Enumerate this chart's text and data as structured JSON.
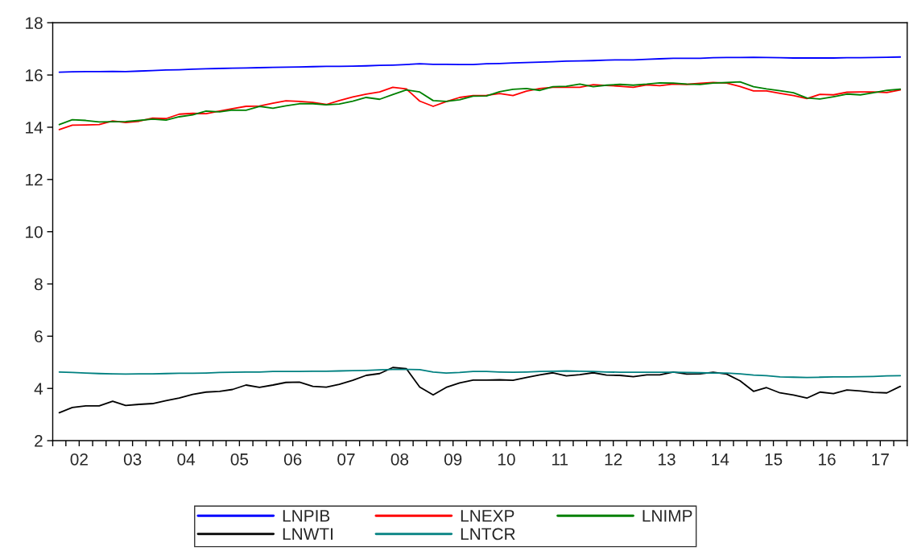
{
  "chart_data": {
    "type": "line",
    "x": [
      "2002-02-15",
      "2002-05-15",
      "2002-08-15",
      "2002-11-15",
      "2003-02-15",
      "2003-05-15",
      "2003-08-15",
      "2003-11-15",
      "2004-02-15",
      "2004-05-15",
      "2004-08-15",
      "2004-11-15",
      "2005-02-15",
      "2005-05-15",
      "2005-08-15",
      "2005-11-15",
      "2006-02-15",
      "2006-05-15",
      "2006-08-15",
      "2006-11-15",
      "2007-02-15",
      "2007-05-15",
      "2007-08-15",
      "2007-11-15",
      "2008-02-15",
      "2008-05-15",
      "2008-08-15",
      "2008-11-15",
      "2009-02-15",
      "2009-05-15",
      "2009-08-15",
      "2009-11-15",
      "2010-02-15",
      "2010-05-15",
      "2010-08-15",
      "2010-11-15",
      "2011-02-15",
      "2011-05-15",
      "2011-08-15",
      "2011-11-15",
      "2012-02-15",
      "2012-05-15",
      "2012-08-15",
      "2012-11-15",
      "2013-02-15",
      "2013-05-15",
      "2013-08-15",
      "2013-11-15",
      "2014-02-15",
      "2014-05-15",
      "2014-08-15",
      "2014-11-15",
      "2015-02-15",
      "2015-05-15",
      "2015-08-15",
      "2015-11-15",
      "2016-02-15",
      "2016-05-15",
      "2016-08-15",
      "2016-11-15",
      "2017-02-15",
      "2017-05-15",
      "2017-08-15",
      "2017-11-15"
    ],
    "series": [
      {
        "name": "LNPIB",
        "color": "#0000ff",
        "values": [
          16.11,
          16.12,
          16.13,
          16.13,
          16.14,
          16.13,
          16.15,
          16.17,
          16.19,
          16.2,
          16.22,
          16.24,
          16.25,
          16.26,
          16.27,
          16.28,
          16.29,
          16.3,
          16.31,
          16.32,
          16.33,
          16.33,
          16.34,
          16.35,
          16.37,
          16.38,
          16.4,
          16.43,
          16.41,
          16.41,
          16.4,
          16.4,
          16.43,
          16.44,
          16.46,
          16.48,
          16.49,
          16.51,
          16.53,
          16.54,
          16.55,
          16.57,
          16.58,
          16.58,
          16.6,
          16.62,
          16.64,
          16.64,
          16.64,
          16.66,
          16.67,
          16.67,
          16.68,
          16.67,
          16.66,
          16.65,
          16.65,
          16.65,
          16.65,
          16.66,
          16.66,
          16.67,
          16.68,
          16.69
        ]
      },
      {
        "name": "LNEXP",
        "color": "#ff0000",
        "values": [
          13.91,
          14.08,
          14.09,
          14.1,
          14.24,
          14.18,
          14.23,
          14.35,
          14.33,
          14.5,
          14.53,
          14.52,
          14.62,
          14.71,
          14.8,
          14.81,
          14.92,
          15.01,
          14.99,
          14.95,
          14.87,
          15.02,
          15.16,
          15.27,
          15.35,
          15.53,
          15.47,
          15.0,
          14.8,
          14.98,
          15.14,
          15.21,
          15.22,
          15.29,
          15.21,
          15.38,
          15.48,
          15.53,
          15.53,
          15.53,
          15.63,
          15.6,
          15.57,
          15.53,
          15.62,
          15.59,
          15.65,
          15.64,
          15.68,
          15.71,
          15.69,
          15.56,
          15.39,
          15.39,
          15.3,
          15.21,
          15.1,
          15.26,
          15.24,
          15.34,
          15.35,
          15.35,
          15.33,
          15.43
        ]
      },
      {
        "name": "LNIMP",
        "color": "#008000",
        "values": [
          14.1,
          14.29,
          14.26,
          14.2,
          14.21,
          14.22,
          14.26,
          14.31,
          14.27,
          14.4,
          14.47,
          14.62,
          14.59,
          14.66,
          14.65,
          14.8,
          14.73,
          14.82,
          14.9,
          14.9,
          14.86,
          14.89,
          15.0,
          15.14,
          15.07,
          15.25,
          15.43,
          15.35,
          15.02,
          14.99,
          15.05,
          15.19,
          15.2,
          15.36,
          15.45,
          15.48,
          15.41,
          15.55,
          15.57,
          15.65,
          15.55,
          15.61,
          15.64,
          15.61,
          15.65,
          15.7,
          15.69,
          15.65,
          15.64,
          15.69,
          15.71,
          15.74,
          15.55,
          15.47,
          15.4,
          15.32,
          15.12,
          15.08,
          15.17,
          15.27,
          15.24,
          15.32,
          15.41,
          15.46
        ]
      },
      {
        "name": "LNWTI",
        "color": "#000000",
        "values": [
          3.07,
          3.27,
          3.33,
          3.33,
          3.51,
          3.35,
          3.39,
          3.42,
          3.53,
          3.63,
          3.77,
          3.86,
          3.89,
          3.96,
          4.13,
          4.04,
          4.13,
          4.23,
          4.24,
          4.08,
          4.05,
          4.16,
          4.31,
          4.5,
          4.57,
          4.8,
          4.76,
          4.05,
          3.75,
          4.04,
          4.21,
          4.32,
          4.32,
          4.33,
          4.31,
          4.42,
          4.52,
          4.6,
          4.48,
          4.53,
          4.6,
          4.51,
          4.5,
          4.45,
          4.52,
          4.52,
          4.63,
          4.55,
          4.56,
          4.62,
          4.55,
          4.29,
          3.89,
          4.03,
          3.83,
          3.75,
          3.63,
          3.86,
          3.8,
          3.94,
          3.9,
          3.85,
          3.83,
          4.08
        ]
      },
      {
        "name": "LNTCR",
        "color": "#008080",
        "values": [
          4.63,
          4.61,
          4.59,
          4.57,
          4.56,
          4.55,
          4.56,
          4.56,
          4.57,
          4.58,
          4.58,
          4.59,
          4.61,
          4.62,
          4.63,
          4.63,
          4.65,
          4.65,
          4.65,
          4.66,
          4.66,
          4.67,
          4.68,
          4.69,
          4.71,
          4.73,
          4.73,
          4.72,
          4.63,
          4.59,
          4.61,
          4.65,
          4.65,
          4.63,
          4.62,
          4.63,
          4.65,
          4.66,
          4.67,
          4.66,
          4.65,
          4.63,
          4.62,
          4.62,
          4.62,
          4.62,
          4.62,
          4.61,
          4.6,
          4.59,
          4.59,
          4.56,
          4.51,
          4.49,
          4.44,
          4.43,
          4.42,
          4.43,
          4.44,
          4.44,
          4.45,
          4.46,
          4.48,
          4.49
        ]
      }
    ],
    "xlim": [
      "2002-01-01",
      "2018-01-01"
    ],
    "xticks": [
      {
        "value": "2002-01-01",
        "label": null
      },
      {
        "value": "2002-04-01",
        "label": null
      },
      {
        "value": "2002-07-01",
        "label": "02"
      },
      {
        "value": "2002-10-01",
        "label": null
      },
      {
        "value": "2003-01-01",
        "label": null
      },
      {
        "value": "2003-04-01",
        "label": null
      },
      {
        "value": "2003-07-01",
        "label": "03"
      },
      {
        "value": "2003-10-01",
        "label": null
      },
      {
        "value": "2004-01-01",
        "label": null
      },
      {
        "value": "2004-04-01",
        "label": null
      },
      {
        "value": "2004-07-01",
        "label": "04"
      },
      {
        "value": "2004-10-01",
        "label": null
      },
      {
        "value": "2005-01-01",
        "label": null
      },
      {
        "value": "2005-04-01",
        "label": null
      },
      {
        "value": "2005-07-01",
        "label": "05"
      },
      {
        "value": "2005-10-01",
        "label": null
      },
      {
        "value": "2006-01-01",
        "label": null
      },
      {
        "value": "2006-04-01",
        "label": null
      },
      {
        "value": "2006-07-01",
        "label": "06"
      },
      {
        "value": "2006-10-01",
        "label": null
      },
      {
        "value": "2007-01-01",
        "label": null
      },
      {
        "value": "2007-04-01",
        "label": null
      },
      {
        "value": "2007-07-01",
        "label": "07"
      },
      {
        "value": "2007-10-01",
        "label": null
      },
      {
        "value": "2008-01-01",
        "label": null
      },
      {
        "value": "2008-04-01",
        "label": null
      },
      {
        "value": "2008-07-01",
        "label": "08"
      },
      {
        "value": "2008-10-01",
        "label": null
      },
      {
        "value": "2009-01-01",
        "label": null
      },
      {
        "value": "2009-04-01",
        "label": null
      },
      {
        "value": "2009-07-01",
        "label": "09"
      },
      {
        "value": "2009-10-01",
        "label": null
      },
      {
        "value": "2010-01-01",
        "label": null
      },
      {
        "value": "2010-04-01",
        "label": null
      },
      {
        "value": "2010-07-01",
        "label": "10"
      },
      {
        "value": "2010-10-01",
        "label": null
      },
      {
        "value": "2011-01-01",
        "label": null
      },
      {
        "value": "2011-04-01",
        "label": null
      },
      {
        "value": "2011-07-01",
        "label": "11"
      },
      {
        "value": "2011-10-01",
        "label": null
      },
      {
        "value": "2012-01-01",
        "label": null
      },
      {
        "value": "2012-04-01",
        "label": null
      },
      {
        "value": "2012-07-01",
        "label": "12"
      },
      {
        "value": "2012-10-01",
        "label": null
      },
      {
        "value": "2013-01-01",
        "label": null
      },
      {
        "value": "2013-04-01",
        "label": null
      },
      {
        "value": "2013-07-01",
        "label": "13"
      },
      {
        "value": "2013-10-01",
        "label": null
      },
      {
        "value": "2014-01-01",
        "label": null
      },
      {
        "value": "2014-04-01",
        "label": null
      },
      {
        "value": "2014-07-01",
        "label": "14"
      },
      {
        "value": "2014-10-01",
        "label": null
      },
      {
        "value": "2015-01-01",
        "label": null
      },
      {
        "value": "2015-04-01",
        "label": null
      },
      {
        "value": "2015-07-01",
        "label": "15"
      },
      {
        "value": "2015-10-01",
        "label": null
      },
      {
        "value": "2016-01-01",
        "label": null
      },
      {
        "value": "2016-04-01",
        "label": null
      },
      {
        "value": "2016-07-01",
        "label": "16"
      },
      {
        "value": "2016-10-01",
        "label": null
      },
      {
        "value": "2017-01-01",
        "label": null
      },
      {
        "value": "2017-04-01",
        "label": null
      },
      {
        "value": "2017-07-01",
        "label": "17"
      },
      {
        "value": "2017-10-01",
        "label": null
      },
      {
        "value": "2018-01-01",
        "label": null
      }
    ],
    "ylim": [
      2,
      18
    ],
    "yticks": [
      2,
      4,
      6,
      8,
      10,
      12,
      14,
      16,
      18
    ],
    "grid": false,
    "legend": "bottom"
  }
}
